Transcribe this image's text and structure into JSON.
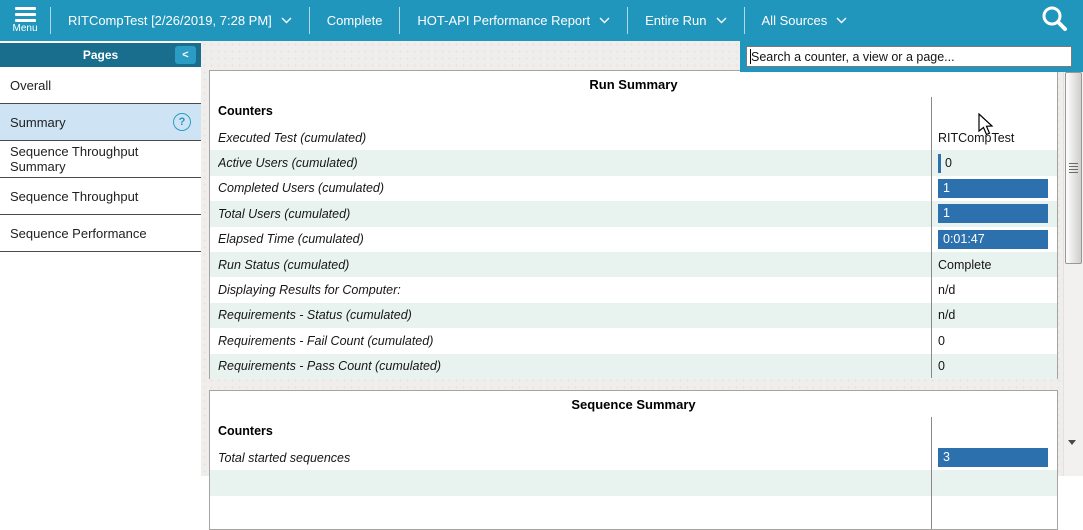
{
  "topbar": {
    "menu": {
      "label": "Menu"
    },
    "items": [
      {
        "label": "RITCompTest [2/26/2019, 7:28 PM]",
        "chevron": true,
        "name": "run-selector",
        "interactable": true
      },
      {
        "label": "Complete",
        "chevron": false,
        "name": "run-status",
        "interactable": false
      },
      {
        "label": "HOT-API Performance Report",
        "chevron": true,
        "name": "report-selector",
        "interactable": true
      },
      {
        "label": "Entire Run",
        "chevron": true,
        "name": "time-range-selector",
        "interactable": true
      },
      {
        "label": "All Sources",
        "chevron": true,
        "name": "sources-selector",
        "interactable": true
      }
    ]
  },
  "search": {
    "placeholder": "Search a counter, a view or a page..."
  },
  "sidebar": {
    "header": "Pages",
    "collapse_glyph": "<",
    "help_glyph": "?",
    "items": [
      {
        "label": "Overall",
        "selected": false,
        "help": false
      },
      {
        "label": "Summary",
        "selected": true,
        "help": true
      },
      {
        "label": "Sequence Throughput Summary",
        "selected": false,
        "help": false
      },
      {
        "label": "Sequence Throughput",
        "selected": false,
        "help": false
      },
      {
        "label": "Sequence Performance",
        "selected": false,
        "help": false
      }
    ]
  },
  "run_summary": {
    "title": "Run Summary",
    "counters_header": "Counters",
    "rows": [
      {
        "label": "Executed Test (cumulated)",
        "value": "RITCompTest",
        "type": "text"
      },
      {
        "label": "Active Users (cumulated)",
        "value": "0",
        "type": "zerobar"
      },
      {
        "label": "Completed Users (cumulated)",
        "value": "1",
        "type": "bar"
      },
      {
        "label": "Total Users (cumulated)",
        "value": "1",
        "type": "bar"
      },
      {
        "label": "Elapsed Time (cumulated)",
        "value": "0:01:47",
        "type": "bar"
      },
      {
        "label": "Run Status (cumulated)",
        "value": "Complete",
        "type": "text"
      },
      {
        "label": "Displaying Results for Computer:",
        "value": "n/d",
        "type": "text"
      },
      {
        "label": "Requirements - Status (cumulated)",
        "value": "n/d",
        "type": "text"
      },
      {
        "label": "Requirements - Fail Count (cumulated)",
        "value": "0",
        "type": "text"
      },
      {
        "label": "Requirements - Pass Count (cumulated)",
        "value": "0",
        "type": "text"
      }
    ]
  },
  "sequence_summary": {
    "title": "Sequence Summary",
    "counters_header": "Counters",
    "rows": [
      {
        "label": "Total started sequences",
        "value": "3",
        "type": "bar"
      },
      {
        "label": "",
        "value": "",
        "type": "text"
      }
    ]
  },
  "colors": {
    "accent_teal": "#2196bd",
    "pages_header_teal": "#186e8c",
    "bar_blue": "#2c71ae",
    "selected_item_blue": "#cee4f5",
    "row_tint": "#e8f3f0"
  }
}
